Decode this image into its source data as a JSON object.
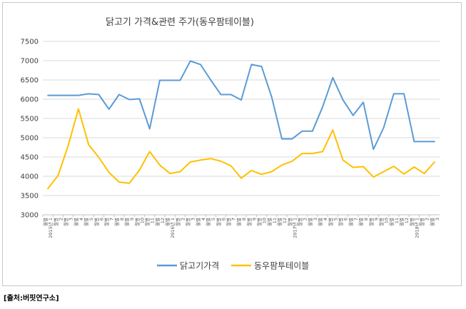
{
  "source_note": "[출처:버핏연구소]",
  "chart_data": {
    "type": "line",
    "title": "닭고기 가격&관련 주가(동우팜테이블)",
    "xlabel": "",
    "ylabel": "",
    "ylim": [
      3000,
      7500
    ],
    "yticks": [
      3000,
      3500,
      4000,
      4500,
      5000,
      5500,
      6000,
      6500,
      7000,
      7500
    ],
    "grid": true,
    "legend_position": "bottom",
    "x": [
      "2015년 1",
      "2",
      "3",
      "4",
      "5",
      "6",
      "7",
      "8",
      "9",
      "10",
      "11",
      "12",
      "2016년 1",
      "2",
      "3",
      "4",
      "5",
      "6",
      "7",
      "8",
      "9",
      "10",
      "11",
      "12",
      "2017년 1",
      "2",
      "3",
      "4",
      "5",
      "6",
      "7",
      "8",
      "9",
      "10",
      "11",
      "12",
      "2018년 1",
      "2",
      "3"
    ],
    "x_prefix": "월별",
    "series": [
      {
        "name": "닭고기가격",
        "color": "#5b9bd5",
        "values": [
          6100,
          6100,
          6100,
          6100,
          6140,
          6120,
          5740,
          6120,
          5990,
          6010,
          5230,
          6490,
          6490,
          6490,
          6990,
          6900,
          6500,
          6120,
          6120,
          5980,
          6900,
          6850,
          6050,
          4970,
          4970,
          5170,
          5170,
          5800,
          6560,
          5980,
          5580,
          5920,
          4700,
          5260,
          6140,
          6140,
          4900,
          4900,
          4900
        ]
      },
      {
        "name": "동우팜투테이블",
        "color": "#ffc000",
        "values": [
          3680,
          4020,
          4800,
          5750,
          4820,
          4490,
          4100,
          3850,
          3820,
          4160,
          4640,
          4290,
          4070,
          4120,
          4370,
          4420,
          4460,
          4390,
          4270,
          3950,
          4150,
          4050,
          4120,
          4290,
          4390,
          4590,
          4590,
          4640,
          5200,
          4420,
          4230,
          4250,
          3980,
          4120,
          4260,
          4060,
          4240,
          4070,
          4370
        ]
      }
    ]
  }
}
